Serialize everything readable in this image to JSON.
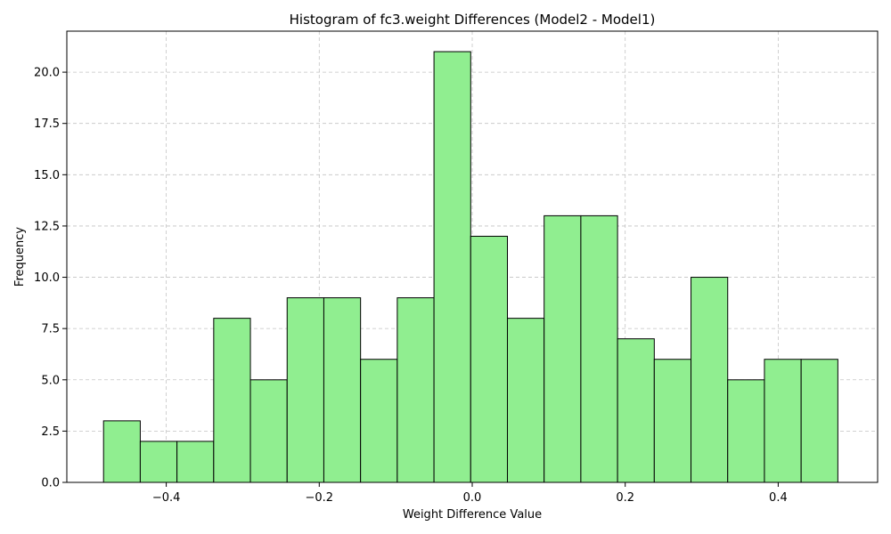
{
  "chart_data": {
    "type": "bar",
    "title": "Histogram of fc3.weight Differences (Model2 - Model1)",
    "xlabel": "Weight Difference Value",
    "ylabel": "Frequency",
    "xlim": [
      -0.53,
      0.53
    ],
    "ylim": [
      0,
      22
    ],
    "bin_edges": [
      -0.482,
      -0.434,
      -0.386,
      -0.338,
      -0.29,
      -0.242,
      -0.194,
      -0.146,
      -0.098,
      -0.05,
      -0.002,
      0.046,
      0.094,
      0.142,
      0.19,
      0.238,
      0.286,
      0.334,
      0.382,
      0.43,
      0.478
    ],
    "values": [
      3,
      2,
      2,
      8,
      5,
      9,
      9,
      6,
      9,
      21,
      12,
      8,
      13,
      13,
      7,
      6,
      10,
      5,
      6,
      6
    ],
    "x_ticks": [
      -0.4,
      -0.2,
      0.0,
      0.2,
      0.4
    ],
    "x_tick_labels": [
      "−0.4",
      "−0.2",
      "0.0",
      "0.2",
      "0.4"
    ],
    "y_ticks": [
      0,
      2.5,
      5,
      7.5,
      10,
      12.5,
      15,
      17.5,
      20
    ],
    "y_tick_labels": [
      "0.0",
      "2.5",
      "5.0",
      "7.5",
      "10.0",
      "12.5",
      "15.0",
      "17.5",
      "20.0"
    ],
    "grid": true,
    "bar_color": "#90ee90",
    "edge_color": "#000000"
  }
}
